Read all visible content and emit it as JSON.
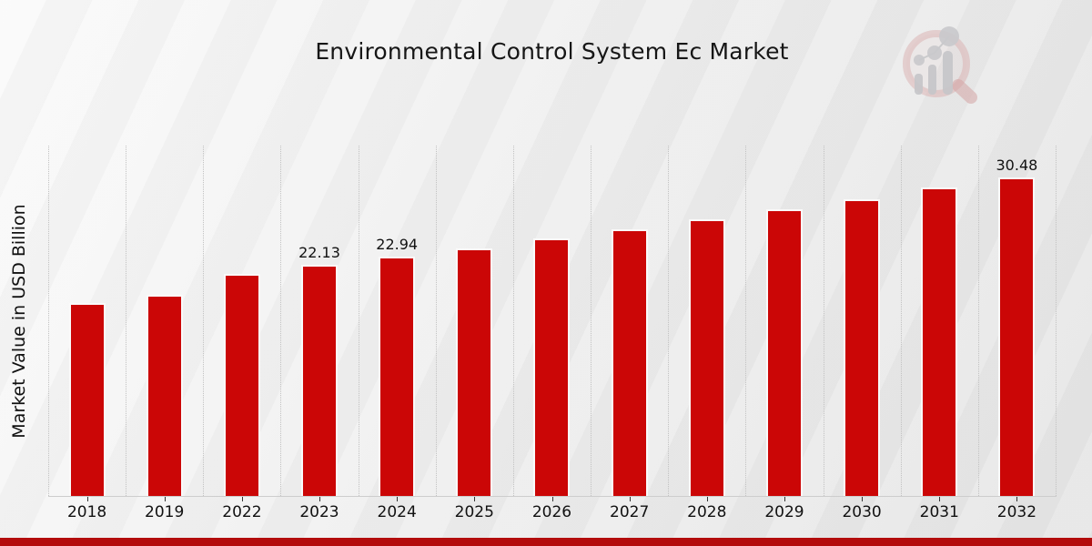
{
  "title": "Environmental Control System Ec Market",
  "watermark": "market-research-magnifier-logo",
  "colors": {
    "bar": "#cb0606",
    "bar_edge": "#fafafa",
    "bottom_strip": "#b30c0c",
    "grid": "#c2c2c2",
    "axis": "#cdcdcd",
    "text": "#111111"
  },
  "chart_data": {
    "type": "bar",
    "title": "Environmental Control System Ec Market",
    "xlabel": "",
    "ylabel": "Market Value in USD Billion",
    "categories": [
      "2018",
      "2019",
      "2022",
      "2023",
      "2024",
      "2025",
      "2026",
      "2027",
      "2028",
      "2029",
      "2030",
      "2031",
      "2032"
    ],
    "values": [
      18.48,
      19.26,
      21.29,
      22.13,
      22.94,
      23.74,
      24.67,
      25.54,
      26.5,
      27.43,
      28.42,
      29.55,
      30.48
    ],
    "bar_labels": [
      "",
      "",
      "",
      "22.13",
      "22.94",
      "",
      "",
      "",
      "",
      "",
      "",
      "",
      "30.48"
    ],
    "ylim": [
      0,
      33.56
    ],
    "grid": "vertical-dotted",
    "legend": "none",
    "bar_color": "#cb0606"
  }
}
